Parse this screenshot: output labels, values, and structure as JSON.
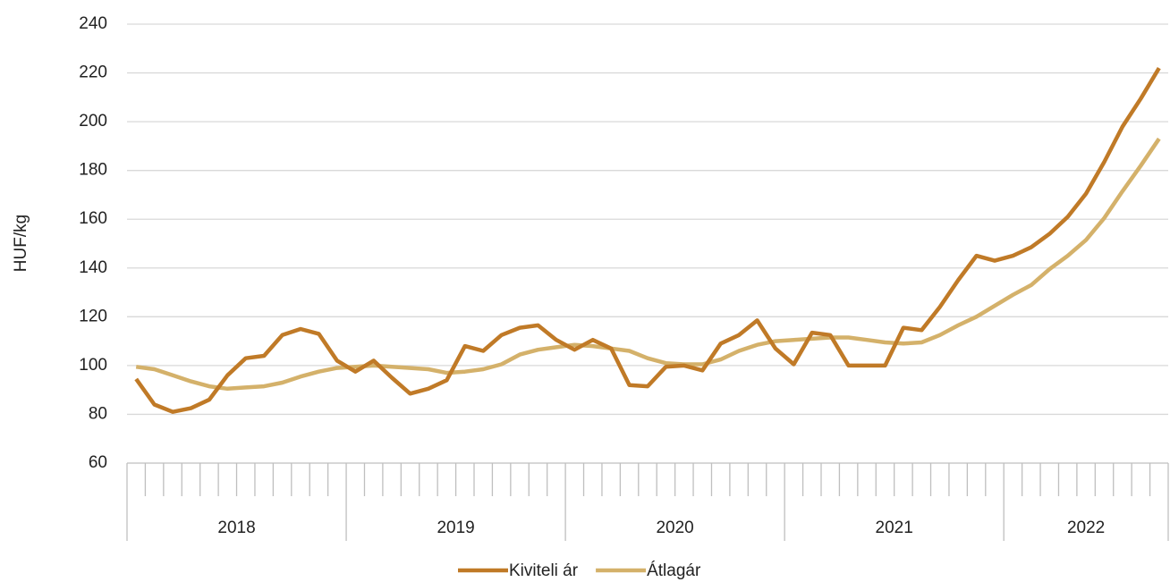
{
  "chart_data": {
    "type": "line",
    "y_label": "HUF/kg",
    "categories": [
      null,
      null,
      null,
      null,
      null,
      null,
      null,
      null,
      null,
      null,
      null,
      null,
      null,
      null,
      null,
      null,
      null,
      null,
      null,
      null,
      null,
      null,
      null,
      null,
      null,
      null,
      null,
      null,
      null,
      null,
      null,
      null,
      null,
      null,
      null,
      null,
      null,
      null,
      null,
      null,
      null,
      null,
      null,
      null,
      null,
      null,
      null,
      null,
      null,
      null,
      null,
      null,
      null,
      null,
      null,
      null,
      null
    ],
    "x_groups": [
      "2018",
      "2019",
      "2020",
      "2021",
      "2022"
    ],
    "series": [
      {
        "name": "Kiviteli ár",
        "color": "#c07a27",
        "values": [
          94.5,
          84,
          81,
          82.5,
          86,
          96,
          103,
          104,
          112.5,
          115,
          113,
          102,
          97.5,
          102,
          95,
          88.5,
          90.5,
          94,
          108,
          106,
          112.5,
          115.5,
          116.5,
          110.5,
          106.5,
          110.5,
          107,
          92,
          91.5,
          99.5,
          100,
          98,
          109,
          112.5,
          118.5,
          107,
          100.5,
          113.5,
          112.5,
          100,
          100,
          100,
          115.5,
          114.5,
          124,
          135,
          145,
          143,
          145,
          148.5,
          154,
          161,
          170.5,
          183.5,
          198,
          209.5,
          222
        ]
      },
      {
        "name": "Átlagár",
        "color": "#d4b16a",
        "values": [
          99.5,
          98.5,
          96,
          93.5,
          91.5,
          90.5,
          91,
          91.5,
          93,
          95.5,
          97.5,
          99,
          99.5,
          100,
          99.5,
          99,
          98.5,
          97,
          97.5,
          98.5,
          100.5,
          104.5,
          106.5,
          107.5,
          108.5,
          108,
          107,
          106,
          103,
          101,
          100.5,
          100.5,
          102.5,
          106,
          108.5,
          110,
          110.5,
          111,
          111.5,
          111.5,
          110.5,
          109.5,
          109,
          109.5,
          112.5,
          116.5,
          120,
          124.5,
          129,
          133,
          139.5,
          145,
          151.5,
          160.5,
          171.5,
          182,
          193
        ]
      }
    ],
    "ylim": [
      60,
      240
    ],
    "yticks": [
      60,
      80,
      100,
      120,
      140,
      160,
      180,
      200,
      220,
      240
    ],
    "grid": true,
    "legend": "bottom"
  }
}
